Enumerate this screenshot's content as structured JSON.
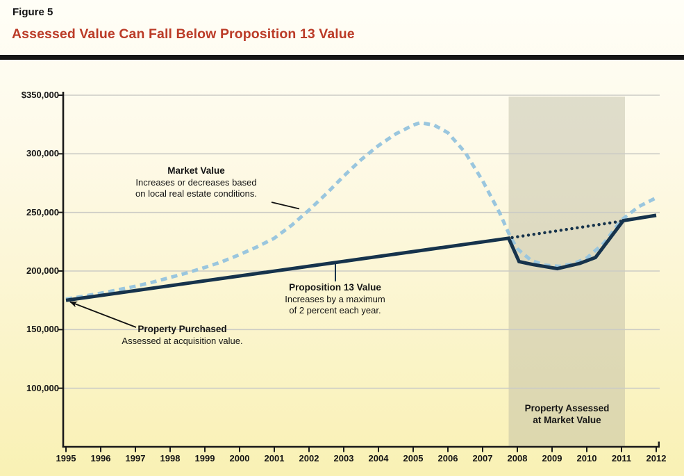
{
  "header": {
    "figure_label": "Figure 5",
    "title": "Assessed Value Can Fall Below Proposition 13 Value",
    "title_color": "#BB3B27"
  },
  "chart_data": {
    "type": "line",
    "title": "Assessed Value Can Fall Below Proposition 13 Value",
    "x_axis": {
      "min": 1995,
      "max": 2012,
      "ticks": [
        "1995",
        "1996",
        "1997",
        "1998",
        "1999",
        "2000",
        "2001",
        "2002",
        "2003",
        "2004",
        "2005",
        "2006",
        "2007",
        "2008",
        "2009",
        "2010",
        "2011",
        "2012"
      ]
    },
    "y_axis": {
      "min": 50000,
      "max": 350000,
      "ticks": [
        {
          "label": "$350,000",
          "value": 350000
        },
        {
          "label": "300,000",
          "value": 300000
        },
        {
          "label": "250,000",
          "value": 250000
        },
        {
          "label": "200,000",
          "value": 200000
        },
        {
          "label": "150,000",
          "value": 150000
        },
        {
          "label": "100,000",
          "value": 100000
        }
      ]
    },
    "grid": true,
    "gridline_color": "#CBCBC5",
    "axis_color": "#1A1A1A",
    "shaded_region": {
      "from_year": 2007.75,
      "to_year": 2011.1,
      "color": "#B9B6A0",
      "label_line1": "Property Assessed",
      "label_line2": "at Market Value"
    },
    "series": [
      {
        "name": "Market Value",
        "style": "dashed",
        "color": "#9AC6DE",
        "points": [
          [
            1995,
            176000
          ],
          [
            1995.5,
            178500
          ],
          [
            1996,
            181000
          ],
          [
            1996.5,
            184000
          ],
          [
            1997,
            187000
          ],
          [
            1997.5,
            190500
          ],
          [
            1998,
            194500
          ],
          [
            1998.5,
            198500
          ],
          [
            1999,
            203000
          ],
          [
            1999.5,
            208000
          ],
          [
            2000,
            214000
          ],
          [
            2000.5,
            220500
          ],
          [
            2001,
            228000
          ],
          [
            2001.5,
            239000
          ],
          [
            2002,
            252000
          ],
          [
            2002.5,
            266000
          ],
          [
            2003,
            281000
          ],
          [
            2003.5,
            295000
          ],
          [
            2004,
            307000
          ],
          [
            2004.5,
            317000
          ],
          [
            2005,
            324500
          ],
          [
            2005.2,
            326500
          ],
          [
            2005.6,
            324500
          ],
          [
            2006,
            318000
          ],
          [
            2006.5,
            301000
          ],
          [
            2007,
            277000
          ],
          [
            2007.5,
            249000
          ],
          [
            2007.8,
            229000
          ],
          [
            2008,
            219000
          ],
          [
            2008.4,
            209000
          ],
          [
            2008.8,
            205000
          ],
          [
            2009.2,
            204000
          ],
          [
            2009.6,
            206000
          ],
          [
            2010,
            211000
          ],
          [
            2010.5,
            224000
          ],
          [
            2011,
            243500
          ],
          [
            2011.5,
            255000
          ],
          [
            2012,
            262500
          ]
        ]
      },
      {
        "name": "Assessed Value (Proposition 13 Value line)",
        "style": "solid",
        "color": "#16334C",
        "points": [
          [
            1995,
            175000
          ],
          [
            2007.75,
            228000
          ],
          [
            2008.05,
            208000
          ],
          [
            2008.45,
            205500
          ],
          [
            2009.15,
            202000
          ],
          [
            2009.8,
            206500
          ],
          [
            2010.25,
            211500
          ],
          [
            2011.05,
            243000
          ],
          [
            2012,
            247500
          ]
        ]
      },
      {
        "name": "Proposition 13 Value trend (dotted, while assessed below)",
        "style": "dotted",
        "color": "#16334C",
        "points": [
          [
            2007.85,
            228500
          ],
          [
            2011,
            242500
          ]
        ]
      }
    ],
    "annotations": {
      "market_value": {
        "title": "Market Value",
        "line1": "Increases or decreases based",
        "line2": "on local real estate conditions."
      },
      "prop13": {
        "title": "Proposition 13 Value",
        "line1": "Increases by a maximum",
        "line2": "of 2 percent each year."
      },
      "property_purchased": {
        "title": "Property Purchased",
        "line1": "Assessed at acquisition value."
      }
    }
  }
}
